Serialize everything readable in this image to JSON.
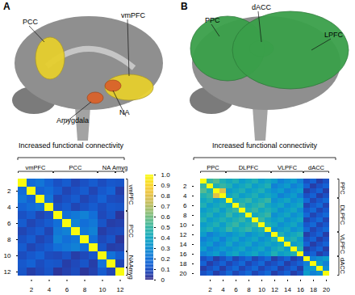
{
  "chart_data": [
    {
      "type": "heatmap",
      "panel": "A",
      "title": "Increased functional connectivity",
      "regions": [
        {
          "label": "PCC",
          "color": "#e6cf2e"
        },
        {
          "label": "vmPFC",
          "color": "#e6cf2e"
        },
        {
          "label": "Amygdala",
          "color": "#d9622b"
        },
        {
          "label": "NA",
          "color": "#d9622b"
        }
      ],
      "x": [
        1,
        2,
        3,
        4,
        5,
        6,
        7,
        8,
        9,
        10,
        11,
        12
      ],
      "y": [
        1,
        2,
        3,
        4,
        5,
        6,
        7,
        8,
        9,
        10,
        11,
        12
      ],
      "xticks": [
        2,
        4,
        6,
        8,
        10,
        12
      ],
      "yticks": [
        2,
        4,
        6,
        8,
        10,
        12
      ],
      "groups": [
        {
          "label": "vmPFC",
          "start": 1,
          "end": 4
        },
        {
          "label": "PCC",
          "start": 5,
          "end": 9
        },
        {
          "label": "NA",
          "start": 10,
          "end": 11
        },
        {
          "label": "Amyg",
          "start": 12,
          "end": 12
        }
      ],
      "matrix": [
        [
          1,
          0.18,
          0.21,
          0.15,
          0.1,
          0.13,
          0.07,
          0.1,
          0.13,
          0.09,
          0.12,
          0.11
        ],
        [
          0.18,
          1,
          0.15,
          0.18,
          0.13,
          0.07,
          0.1,
          0.13,
          0.07,
          0.12,
          0.15,
          0.05
        ],
        [
          0.21,
          0.15,
          1,
          0.21,
          0.07,
          0.1,
          0.13,
          0.07,
          0.1,
          0.15,
          0.09,
          0.08
        ],
        [
          0.15,
          0.18,
          0.21,
          1,
          0.1,
          0.13,
          0.07,
          0.1,
          0.13,
          0.09,
          0.12,
          0.11
        ],
        [
          0.1,
          0.13,
          0.07,
          0.1,
          1,
          0.19,
          0.22,
          0.25,
          0.19,
          0.08,
          0.11,
          0.03
        ],
        [
          0.13,
          0.07,
          0.1,
          0.13,
          0.19,
          1,
          0.25,
          0.19,
          0.22,
          0.11,
          0.05,
          0.06
        ],
        [
          0.07,
          0.1,
          0.13,
          0.07,
          0.22,
          0.25,
          1,
          0.22,
          0.25,
          0.05,
          0.08,
          0.09
        ],
        [
          0.1,
          0.13,
          0.07,
          0.1,
          0.25,
          0.19,
          0.22,
          1,
          0.19,
          0.08,
          0.11,
          0.03
        ],
        [
          0.13,
          0.07,
          0.1,
          0.13,
          0.19,
          0.22,
          0.25,
          0.19,
          1,
          0.11,
          0.05,
          0.06
        ],
        [
          0.09,
          0.12,
          0.15,
          0.09,
          0.08,
          0.11,
          0.05,
          0.08,
          0.11,
          1,
          0.2,
          0.13
        ],
        [
          0.12,
          0.15,
          0.09,
          0.12,
          0.11,
          0.05,
          0.08,
          0.11,
          0.05,
          0.2,
          1,
          0.07
        ],
        [
          0.11,
          0.05,
          0.08,
          0.11,
          0.03,
          0.06,
          0.09,
          0.03,
          0.06,
          0.13,
          0.07,
          1
        ]
      ],
      "colorbar": {
        "range": [
          0,
          1
        ],
        "ticks": [
          0,
          0.1,
          0.2,
          0.3,
          0.4,
          0.5,
          0.6,
          0.7,
          0.8,
          0.9,
          {
            "value": 1,
            "label": "1.0"
          }
        ]
      }
    },
    {
      "type": "heatmap",
      "panel": "B",
      "title": "Increased functional connectivity",
      "regions": [
        {
          "label": "PPC",
          "color": "#3aa04a"
        },
        {
          "label": "dACC",
          "color": "#3aa04a"
        },
        {
          "label": "LPFC",
          "color": "#3aa04a"
        }
      ],
      "x": [
        1,
        2,
        3,
        4,
        5,
        6,
        7,
        8,
        9,
        10,
        11,
        12,
        13,
        14,
        15,
        16,
        17,
        18,
        19,
        20
      ],
      "y": [
        1,
        2,
        3,
        4,
        5,
        6,
        7,
        8,
        9,
        10,
        11,
        12,
        13,
        14,
        15,
        16,
        17,
        18,
        19,
        20
      ],
      "xticks": [
        2,
        4,
        6,
        8,
        10,
        12,
        14,
        16,
        18,
        20
      ],
      "yticks": [
        2,
        4,
        6,
        8,
        10,
        12,
        14,
        16,
        18,
        20
      ],
      "groups": [
        {
          "label": "PPC",
          "start": 1,
          "end": 4
        },
        {
          "label": "DLPFC",
          "start": 5,
          "end": 11
        },
        {
          "label": "VLPFC",
          "start": 12,
          "end": 16
        },
        {
          "label": "dACC",
          "start": 17,
          "end": 20
        }
      ],
      "matrix": [
        [
          1,
          0.5,
          0.55,
          0.45,
          0.4,
          0.45,
          0.35,
          0.4,
          0.45,
          0.35,
          0.4,
          0.35,
          0.25,
          0.3,
          0.35,
          0.25,
          0.1,
          0.15,
          0.05,
          0.1
        ],
        [
          0.5,
          1,
          0.45,
          0.5,
          0.45,
          0.35,
          0.4,
          0.45,
          0.35,
          0.4,
          0.45,
          0.25,
          0.3,
          0.35,
          0.25,
          0.3,
          0.15,
          0.05,
          0.1,
          0.15
        ],
        [
          0.55,
          0.45,
          1,
          0.8,
          0.35,
          0.4,
          0.45,
          0.35,
          0.4,
          0.45,
          0.35,
          0.3,
          0.35,
          0.25,
          0.3,
          0.35,
          0.05,
          0.1,
          0.15,
          0.05
        ],
        [
          0.45,
          0.5,
          0.8,
          1,
          0.4,
          0.45,
          0.35,
          0.4,
          0.45,
          0.35,
          0.4,
          0.35,
          0.25,
          0.3,
          0.35,
          0.25,
          0.1,
          0.15,
          0.05,
          0.1
        ],
        [
          0.4,
          0.45,
          0.35,
          0.4,
          1,
          0.4,
          0.45,
          0.5,
          0.4,
          0.45,
          0.5,
          0.3,
          0.35,
          0.4,
          0.3,
          0.35,
          0.17,
          0.07,
          0.12,
          0.17
        ],
        [
          0.45,
          0.35,
          0.4,
          0.45,
          0.4,
          1,
          0.5,
          0.4,
          0.45,
          0.5,
          0.4,
          0.35,
          0.4,
          0.3,
          0.35,
          0.4,
          0.07,
          0.12,
          0.17,
          0.07
        ],
        [
          0.35,
          0.4,
          0.45,
          0.35,
          0.45,
          0.5,
          1,
          0.45,
          0.5,
          0.4,
          0.45,
          0.4,
          0.3,
          0.35,
          0.4,
          0.3,
          0.12,
          0.17,
          0.07,
          0.12
        ],
        [
          0.4,
          0.45,
          0.35,
          0.4,
          0.5,
          0.4,
          0.45,
          1,
          0.4,
          0.45,
          0.5,
          0.3,
          0.35,
          0.4,
          0.3,
          0.35,
          0.17,
          0.07,
          0.12,
          0.17
        ],
        [
          0.45,
          0.35,
          0.4,
          0.45,
          0.4,
          0.45,
          0.5,
          0.4,
          1,
          0.5,
          0.4,
          0.35,
          0.4,
          0.3,
          0.35,
          0.4,
          0.07,
          0.12,
          0.17,
          0.07
        ],
        [
          0.35,
          0.4,
          0.45,
          0.35,
          0.45,
          0.5,
          0.4,
          0.45,
          0.5,
          1,
          0.45,
          0.4,
          0.3,
          0.35,
          0.4,
          0.3,
          0.12,
          0.17,
          0.07,
          0.12
        ],
        [
          0.4,
          0.45,
          0.35,
          0.4,
          0.5,
          0.4,
          0.45,
          0.5,
          0.4,
          0.45,
          1,
          0.3,
          0.35,
          0.4,
          0.3,
          0.35,
          0.17,
          0.07,
          0.12,
          0.17
        ],
        [
          0.35,
          0.25,
          0.3,
          0.35,
          0.3,
          0.35,
          0.4,
          0.3,
          0.35,
          0.4,
          0.3,
          1,
          0.45,
          0.35,
          0.4,
          0.45,
          0.05,
          0.1,
          0.15,
          0.05
        ],
        [
          0.25,
          0.3,
          0.35,
          0.25,
          0.35,
          0.4,
          0.3,
          0.35,
          0.4,
          0.3,
          0.35,
          0.45,
          1,
          0.4,
          0.45,
          0.35,
          0.1,
          0.15,
          0.05,
          0.1
        ],
        [
          0.3,
          0.35,
          0.25,
          0.3,
          0.4,
          0.3,
          0.35,
          0.4,
          0.3,
          0.35,
          0.4,
          0.35,
          0.4,
          1,
          0.35,
          0.4,
          0.15,
          0.05,
          0.1,
          0.15
        ],
        [
          0.35,
          0.25,
          0.3,
          0.35,
          0.3,
          0.35,
          0.4,
          0.3,
          0.35,
          0.4,
          0.3,
          0.4,
          0.45,
          0.35,
          1,
          0.45,
          0.05,
          0.1,
          0.15,
          0.05
        ],
        [
          0.25,
          0.3,
          0.35,
          0.25,
          0.35,
          0.4,
          0.3,
          0.35,
          0.4,
          0.3,
          0.35,
          0.45,
          0.35,
          0.4,
          0.45,
          1,
          0.1,
          0.15,
          0.05,
          0.1
        ],
        [
          0.1,
          0.15,
          0.05,
          0.1,
          0.17,
          0.07,
          0.12,
          0.17,
          0.07,
          0.12,
          0.17,
          0.05,
          0.1,
          0.15,
          0.05,
          0.1,
          1,
          0.25,
          0.3,
          0.35
        ],
        [
          0.15,
          0.05,
          0.1,
          0.15,
          0.07,
          0.12,
          0.17,
          0.07,
          0.12,
          0.17,
          0.07,
          0.1,
          0.15,
          0.05,
          0.1,
          0.15,
          0.25,
          1,
          0.35,
          0.25
        ],
        [
          0.05,
          0.1,
          0.15,
          0.05,
          0.12,
          0.17,
          0.07,
          0.12,
          0.17,
          0.07,
          0.12,
          0.15,
          0.05,
          0.1,
          0.15,
          0.05,
          0.3,
          0.35,
          1,
          0.3
        ],
        [
          0.1,
          0.15,
          0.05,
          0.1,
          0.17,
          0.07,
          0.12,
          0.17,
          0.07,
          0.12,
          0.17,
          0.05,
          0.1,
          0.15,
          0.05,
          0.1,
          0.35,
          0.25,
          0.3,
          1
        ]
      ]
    }
  ]
}
